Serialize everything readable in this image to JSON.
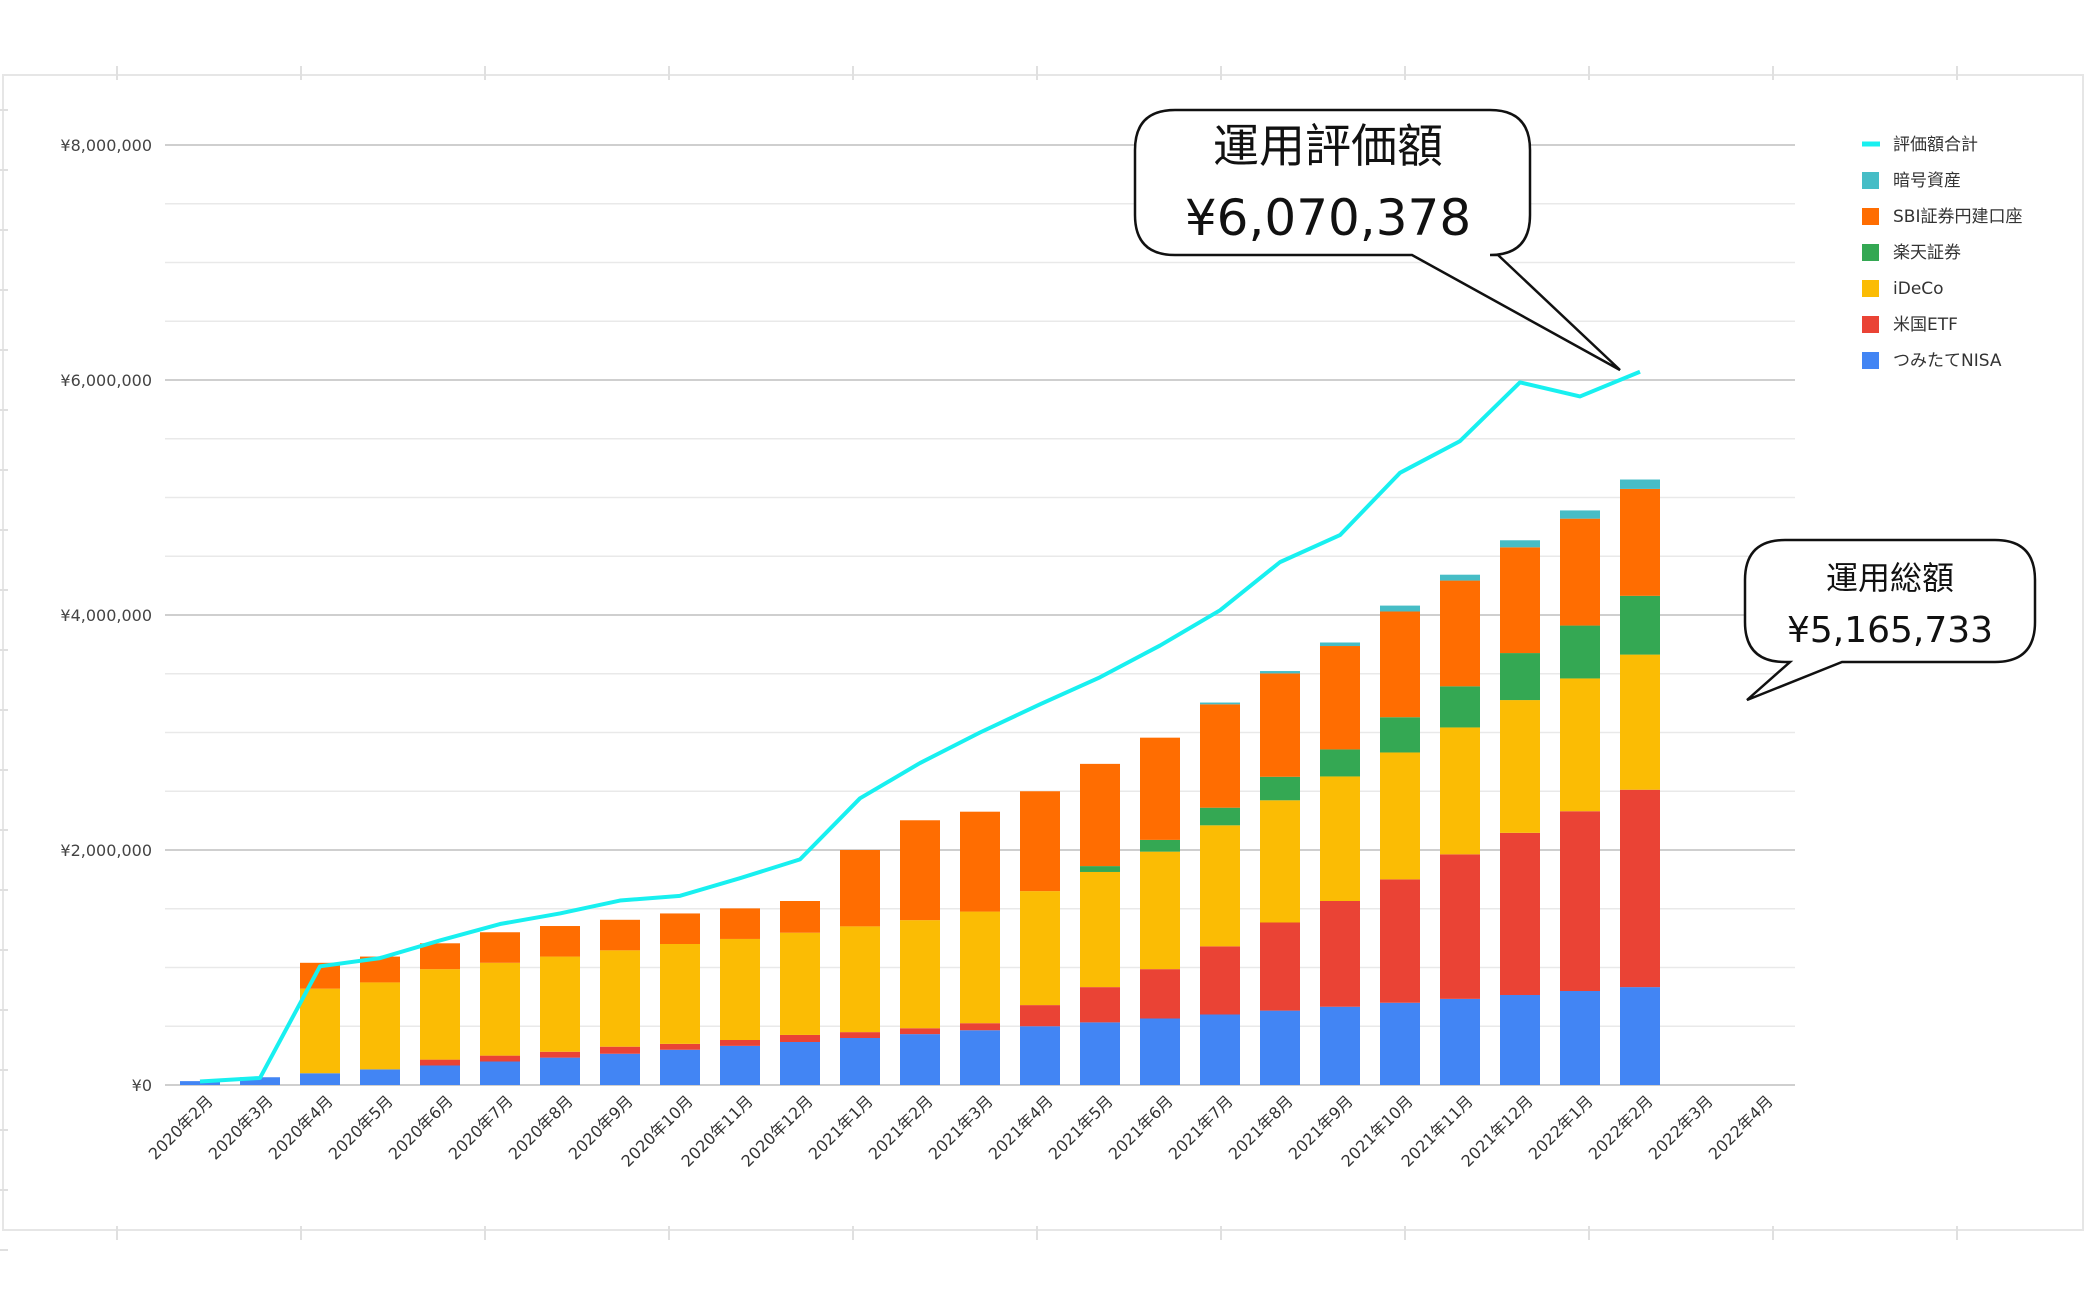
{
  "chart_data": {
    "type": "bar",
    "stacked": true,
    "categories": [
      "2020年2月",
      "2020年3月",
      "2020年4月",
      "2020年5月",
      "2020年6月",
      "2020年7月",
      "2020年8月",
      "2020年9月",
      "2020年10月",
      "2020年11月",
      "2020年12月",
      "2021年1月",
      "2021年2月",
      "2021年3月",
      "2021年4月",
      "2021年5月",
      "2021年6月",
      "2021年7月",
      "2021年8月",
      "2021年9月",
      "2021年10月",
      "2021年11月",
      "2021年12月",
      "2022年1月",
      "2022年2月",
      "2022年3月",
      "2022年4月"
    ],
    "y_ticks": [
      "¥0",
      "¥2,000,000",
      "¥4,000,000",
      "¥6,000,000",
      "¥8,000,000"
    ],
    "ylim": [
      0,
      8000000
    ],
    "grid": true,
    "legend_position": "right",
    "series": [
      {
        "name": "つみたてNISA",
        "color": "#4285f4",
        "values": [
          33000,
          66000,
          100000,
          133000,
          166000,
          200000,
          233000,
          266000,
          300000,
          333000,
          366000,
          400000,
          433000,
          466000,
          500000,
          533000,
          566000,
          600000,
          633000,
          666000,
          700000,
          733000,
          766000,
          800000,
          833000,
          null,
          null
        ]
      },
      {
        "name": "米国ETF",
        "color": "#ea4335",
        "values": [
          0,
          0,
          0,
          0,
          50000,
          50000,
          50000,
          60000,
          50000,
          50000,
          60000,
          50000,
          50000,
          60000,
          180000,
          300000,
          420000,
          580000,
          750000,
          900000,
          1050000,
          1230000,
          1380000,
          1530000,
          1680000,
          null,
          null
        ]
      },
      {
        "name": "iDeCo",
        "color": "#fbbc04",
        "values": [
          0,
          0,
          720000,
          740000,
          770000,
          790000,
          810000,
          820000,
          850000,
          860000,
          870000,
          900000,
          920000,
          950000,
          970000,
          980000,
          1000000,
          1030000,
          1040000,
          1060000,
          1080000,
          1080000,
          1130000,
          1130000,
          1150000,
          null,
          null
        ]
      },
      {
        "name": "楽天証券",
        "color": "#34a853",
        "values": [
          0,
          0,
          0,
          0,
          0,
          0,
          0,
          0,
          0,
          0,
          0,
          0,
          0,
          0,
          0,
          50000,
          100000,
          150000,
          200000,
          230000,
          300000,
          350000,
          400000,
          450000,
          500000,
          null,
          null
        ]
      },
      {
        "name": "SBI証券円建口座",
        "color": "#ff6d01",
        "values": [
          0,
          0,
          220000,
          220000,
          220000,
          260000,
          260000,
          260000,
          260000,
          260000,
          270000,
          650000,
          850000,
          850000,
          850000,
          870000,
          870000,
          880000,
          880000,
          880000,
          900000,
          900000,
          900000,
          910000,
          910000,
          null,
          null
        ]
      },
      {
        "name": "暗号資産",
        "color": "#46bdc6",
        "values": [
          0,
          0,
          0,
          0,
          0,
          0,
          0,
          0,
          0,
          0,
          0,
          0,
          0,
          0,
          0,
          0,
          0,
          15000,
          20000,
          30000,
          50000,
          50000,
          60000,
          70000,
          80000,
          null,
          null
        ]
      },
      {
        "name": "評価額合計",
        "color": "#18f0f0",
        "type": "line",
        "values": [
          30000,
          60000,
          1010000,
          1080000,
          1230000,
          1370000,
          1460000,
          1570000,
          1610000,
          1760000,
          1920000,
          2440000,
          2740000,
          3000000,
          3240000,
          3470000,
          3740000,
          4040000,
          4450000,
          4680000,
          5210000,
          5480000,
          5980000,
          5860000,
          6070378,
          null,
          null
        ]
      }
    ],
    "callouts": [
      {
        "title": "運用評価額",
        "value": "¥6,070,378"
      },
      {
        "title": "運用総額",
        "value": "¥5,165,733"
      }
    ]
  }
}
